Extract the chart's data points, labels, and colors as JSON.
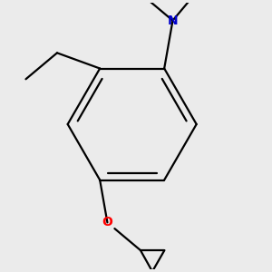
{
  "background_color": "#ebebeb",
  "bond_color": "#000000",
  "nitrogen_color": "#0000cc",
  "oxygen_color": "#ff0000",
  "line_width": 1.6,
  "figsize": [
    3.0,
    3.0
  ],
  "dpi": 100
}
